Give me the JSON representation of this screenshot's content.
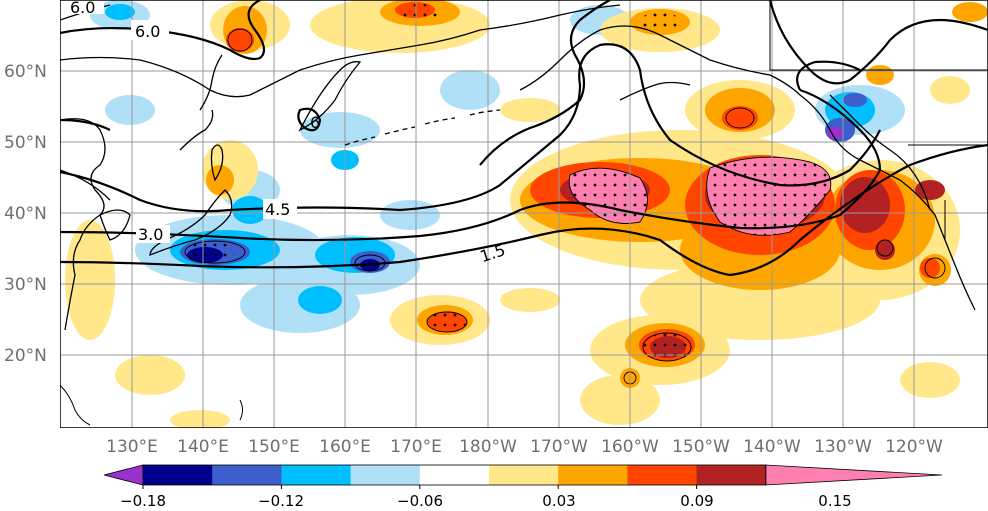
{
  "map": {
    "lat_labels": [
      "60°N",
      "50°N",
      "40°N",
      "30°N",
      "20°N"
    ],
    "lon_labels": [
      "130°E",
      "140°E",
      "150°E",
      "160°E",
      "170°E",
      "180°W",
      "170°W",
      "160°W",
      "150°W",
      "140°W",
      "130°W",
      "120°W"
    ],
    "contour_labels": [
      "6.0",
      "6.0",
      "6",
      "4.5",
      "3.0",
      "1.5"
    ]
  },
  "colorbar": {
    "tick_labels": [
      "−0.18",
      "−0.12",
      "−0.06",
      "0.03",
      "0.09",
      "0.15"
    ],
    "colors": [
      "#9932cc",
      "#00008b",
      "#3c5fcd",
      "#00bfff",
      "#b0e0f8",
      "#ffffff",
      "#ffe78a",
      "#ffa500",
      "#ff4500",
      "#b22222",
      "#ff7fb0"
    ]
  }
}
